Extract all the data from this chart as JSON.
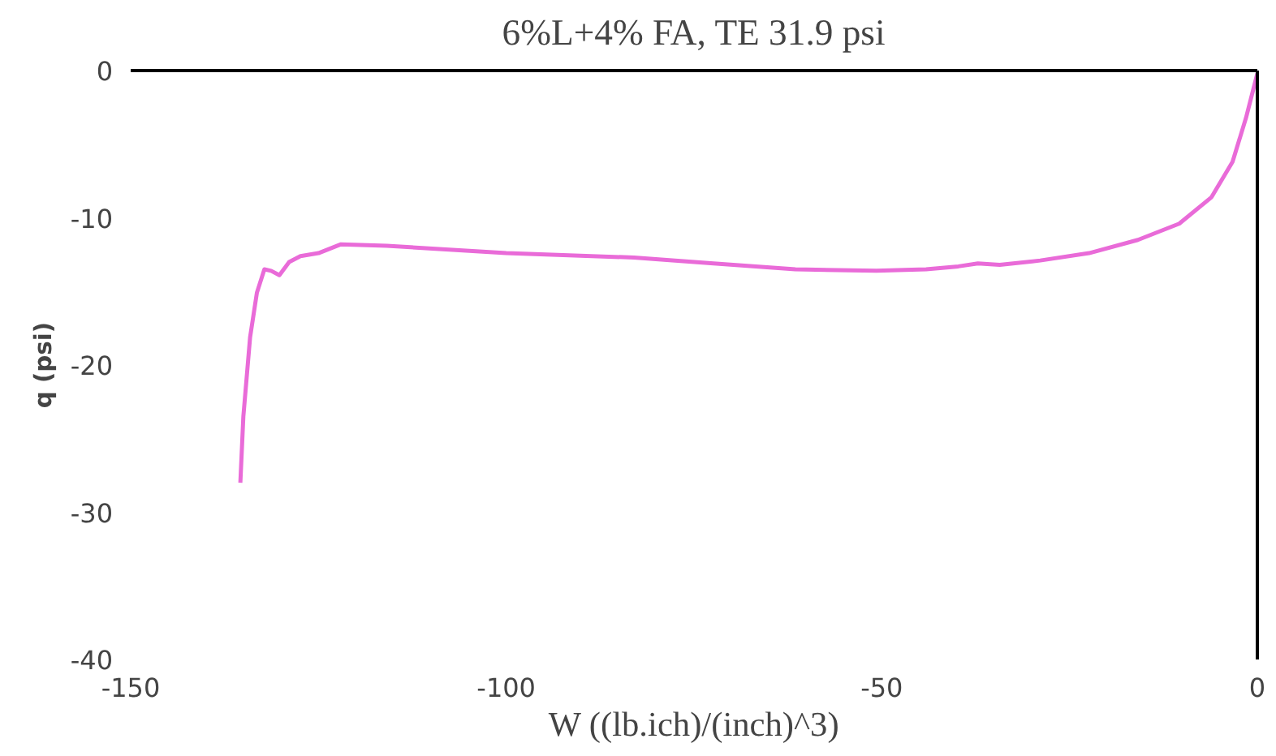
{
  "chart_data": {
    "type": "line",
    "title": "6%L+4% FA, TE 31.9 psi",
    "xlabel": "W ((lb.ich)/(inch)^3)",
    "ylabel": "q (psi)",
    "xlim": [
      -150,
      0
    ],
    "xticks": [
      -150,
      -100,
      -50,
      0
    ],
    "ylim": [
      -40,
      0
    ],
    "yticks": [
      -40,
      -30,
      -20,
      -10,
      0
    ],
    "marker": "none",
    "line_style": "solid",
    "series": [
      {
        "color": "#e96bd8",
        "x": [
          -135.4,
          -135,
          -134.1,
          -133.2,
          -132.2,
          -131.3,
          -130.2,
          -128.9,
          -127.4,
          -125,
          -123.5,
          -122,
          -115.9,
          -100,
          -83,
          -72.4,
          -61.5,
          -50.7,
          -44.1,
          -39.8,
          -37.2,
          -34.3,
          -28.9,
          -22.4,
          -15.9,
          -10.4,
          -6.1,
          -3.3,
          -1.5,
          0
        ],
        "values": [
          -28,
          -23.5,
          -18.1,
          -15.1,
          -13.5,
          -13.6,
          -13.9,
          -13,
          -12.6,
          -12.4,
          -12.1,
          -11.8,
          -11.9,
          -12.4,
          -12.7,
          -13.1,
          -13.5,
          -13.6,
          -13.5,
          -13.3,
          -13.1,
          -13.2,
          -12.9,
          -12.4,
          -11.5,
          -10.4,
          -8.6,
          -6.2,
          -3.2,
          -0.2
        ]
      }
    ]
  }
}
